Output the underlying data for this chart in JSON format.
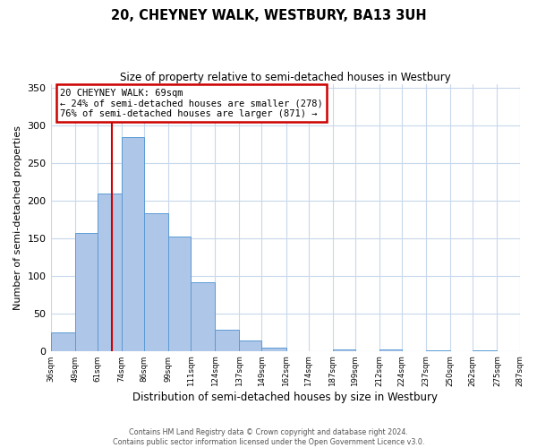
{
  "title": "20, CHEYNEY WALK, WESTBURY, BA13 3UH",
  "subtitle": "Size of property relative to semi-detached houses in Westbury",
  "xlabel": "Distribution of semi-detached houses by size in Westbury",
  "ylabel": "Number of semi-detached properties",
  "bin_edges": [
    36,
    49,
    61,
    74,
    86,
    99,
    111,
    124,
    137,
    149,
    162,
    174,
    187,
    199,
    212,
    224,
    237,
    250,
    262,
    275,
    287
  ],
  "bar_heights": [
    25,
    157,
    210,
    285,
    183,
    152,
    91,
    28,
    14,
    5,
    0,
    0,
    2,
    0,
    2,
    0,
    1,
    0,
    1,
    0
  ],
  "bar_color": "#aec6e8",
  "bar_edge_color": "#5b9bd5",
  "property_size": 69,
  "vline_color": "#cc0000",
  "annotation_line1": "20 CHEYNEY WALK: 69sqm",
  "annotation_line2": "← 24% of semi-detached houses are smaller (278)",
  "annotation_line3": "76% of semi-detached houses are larger (871) →",
  "annotation_box_edge_color": "#cc0000",
  "ylim": [
    0,
    355
  ],
  "yticks": [
    0,
    50,
    100,
    150,
    200,
    250,
    300,
    350
  ],
  "footnote1": "Contains HM Land Registry data © Crown copyright and database right 2024.",
  "footnote2": "Contains public sector information licensed under the Open Government Licence v3.0.",
  "background_color": "#ffffff",
  "grid_color": "#c8d8ec"
}
